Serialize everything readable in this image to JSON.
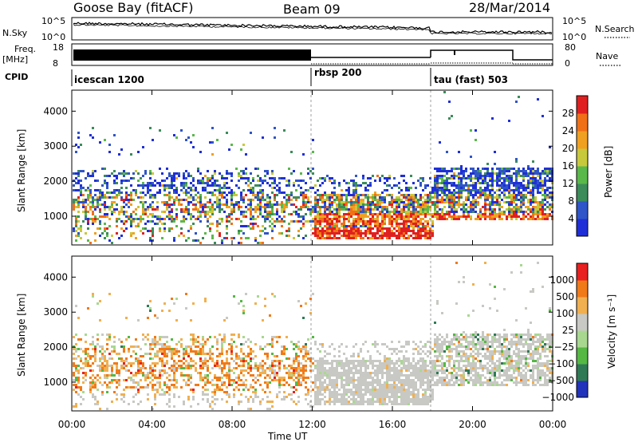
{
  "header": {
    "station": "Goose Bay (fitACF)",
    "beam": "Beam 09",
    "date": "28/Mar/2014"
  },
  "top_panels": {
    "nsky_label": "N.Sky",
    "nsky_ticks": [
      "10^5",
      "10^0"
    ],
    "nsearch_label": "N.Search",
    "nsearch_ticks": [
      "10^5",
      "10^0"
    ],
    "freq_label": "Freq.",
    "freq_unit": "[MHz]",
    "freq_ticks": [
      "18",
      "8"
    ],
    "nave_label": "Nave",
    "nave_ticks": [
      "80",
      "0"
    ],
    "cpid_label": "CPID",
    "cpid_segments": [
      {
        "label": "icescan 1200",
        "start_hour": 0
      },
      {
        "label": "rbsp 200",
        "start_hour": 12
      },
      {
        "label": "tau (fast) 503",
        "start_hour": 18
      }
    ]
  },
  "chart_data": [
    {
      "type": "heatmap",
      "name": "power-panel",
      "ylabel": "Slant Range [km]",
      "xlim_hours": [
        0,
        24
      ],
      "ylim_km": [
        180,
        4600
      ],
      "y_ticks": [
        "1000",
        "2000",
        "3000",
        "4000"
      ],
      "y_tick_values": [
        1000,
        2000,
        3000,
        4000
      ],
      "colorbar_label": "Power [dB]",
      "colorbar_ticks": [
        "4",
        "8",
        "12",
        "16",
        "20",
        "24",
        "28"
      ],
      "colorbar_tick_values": [
        4,
        8,
        12,
        16,
        20,
        24,
        28
      ],
      "colorbar_range": [
        0,
        32
      ],
      "colors": [
        "#1f2fd8",
        "#2f55c8",
        "#3c8c5a",
        "#5ab84a",
        "#c8c83c",
        "#f0a020",
        "#f07018",
        "#e02020"
      ]
    },
    {
      "type": "heatmap",
      "name": "velocity-panel",
      "ylabel": "Slant Range [km]",
      "xlabel": "Time UT",
      "xlim_hours": [
        0,
        24
      ],
      "ylim_km": [
        180,
        4600
      ],
      "y_ticks": [
        "1000",
        "2000",
        "3000",
        "4000"
      ],
      "y_tick_values": [
        1000,
        2000,
        3000,
        4000
      ],
      "x_ticks": [
        "00:00",
        "04:00",
        "08:00",
        "12:00",
        "16:00",
        "20:00",
        "00:00"
      ],
      "x_tick_values": [
        0,
        4,
        8,
        12,
        16,
        20,
        24
      ],
      "colorbar_label": "Velocity [m s⁻¹]",
      "colorbar_ticks": [
        "1000",
        "500",
        "100",
        "25",
        "−25",
        "−100",
        "−500",
        "−1000"
      ],
      "colors": [
        "#2233bb",
        "#2f7a55",
        "#55b843",
        "#a8d890",
        "#c8c8c4",
        "#f0b050",
        "#f07a18",
        "#e82020"
      ]
    }
  ]
}
